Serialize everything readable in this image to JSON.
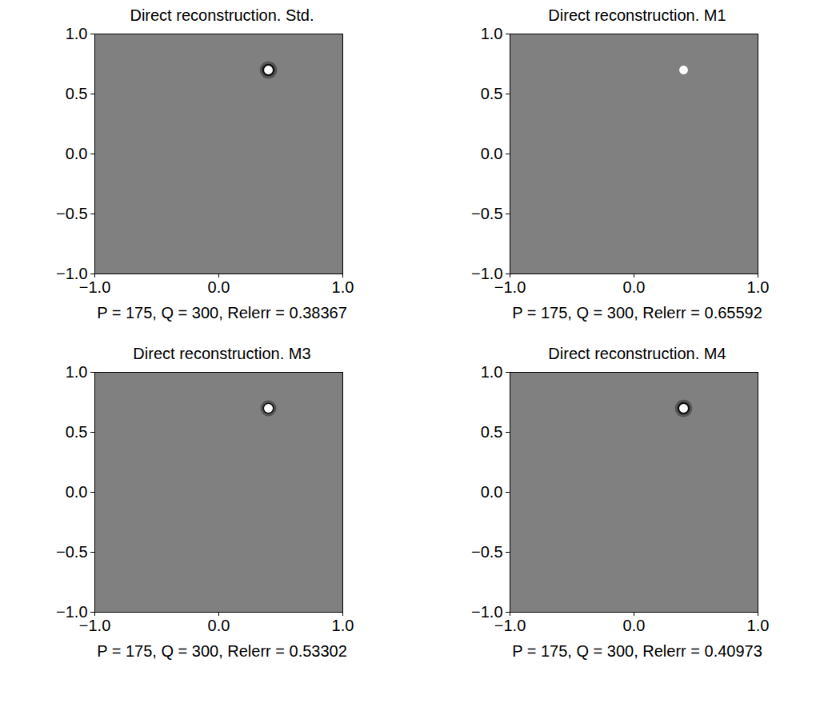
{
  "chart_data": [
    {
      "type": "image",
      "title": "Direct reconstruction. Std.",
      "xlabel": "P = 175, Q = 300, Relerr = 0.38367",
      "xlim": [
        -1,
        1
      ],
      "ylim": [
        -1,
        1
      ],
      "xticks": [
        -1,
        0,
        1
      ],
      "yticks": [
        -1,
        -0.5,
        0,
        0.5,
        1
      ],
      "color": "#ffffff",
      "spot": {
        "x": 0.4,
        "y": 0.7,
        "r": 0.035
      },
      "ring_radius": 0.06
    },
    {
      "type": "image",
      "title": "Direct reconstruction. M1",
      "xlabel": "P = 175, Q = 300, Relerr = 0.65592",
      "xlim": [
        -1,
        1
      ],
      "ylim": [
        -1,
        1
      ],
      "xticks": [
        -1,
        0,
        1
      ],
      "yticks": [
        -1,
        -0.5,
        0,
        0.5,
        1
      ],
      "color": "#ffffff",
      "spot": {
        "x": 0.4,
        "y": 0.7,
        "r": 0.035
      }
    },
    {
      "type": "image",
      "title": "Direct reconstruction. M3",
      "xlabel": "P = 175, Q = 300, Relerr = 0.53302",
      "xlim": [
        -1,
        1
      ],
      "ylim": [
        -1,
        1
      ],
      "xticks": [
        -1,
        0,
        1
      ],
      "yticks": [
        -1,
        -0.5,
        0,
        0.5,
        1
      ],
      "color": "#ffffff",
      "spot": {
        "x": 0.4,
        "y": 0.7,
        "r": 0.035
      },
      "ring_radius": 0.055
    },
    {
      "type": "image",
      "title": "Direct reconstruction. M4",
      "xlabel": "P = 175, Q = 300, Relerr = 0.40973",
      "xlim": [
        -1,
        1
      ],
      "ylim": [
        -1,
        1
      ],
      "xticks": [
        -1,
        0,
        1
      ],
      "yticks": [
        -1,
        -0.5,
        0,
        0.5,
        1
      ],
      "color": "#ffffff",
      "spot": {
        "x": 0.4,
        "y": 0.7,
        "r": 0.035
      },
      "ring_radius": 0.06
    }
  ]
}
